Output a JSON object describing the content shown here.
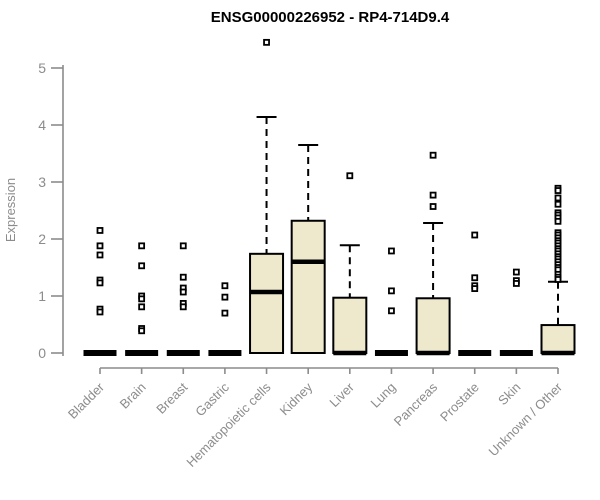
{
  "colors": {
    "background": "#ffffff",
    "box_fill": "#eee8cd",
    "box_border": "#000000",
    "median": "#000000",
    "whisker": "#000000",
    "outlier": "#000000",
    "axis": "#8c8c8c",
    "tick_label": "#8c8c8c",
    "title": "#000000"
  },
  "chart_data": {
    "type": "boxplot",
    "title": "ENSG00000226952 - RP4-714D9.4",
    "xlabel": "",
    "ylabel": "Expression",
    "ylim": [
      0,
      5.5
    ],
    "yticks": [
      0,
      1,
      2,
      3,
      4,
      5
    ],
    "grid": false,
    "legend": "none",
    "categories": [
      "Bladder",
      "Brain",
      "Breast",
      "Gastric",
      "Hematopoietic cells",
      "Kidney",
      "Liver",
      "Lung",
      "Pancreas",
      "Prostate",
      "Skin",
      "Unknown / Other"
    ],
    "series": [
      {
        "name": "Bladder",
        "whisker_low": 0,
        "q1": 0,
        "median": 0,
        "q3": 0,
        "whisker_high": 0,
        "outliers": [
          2.15,
          1.88,
          1.72,
          1.28,
          1.23,
          0.77,
          0.72
        ]
      },
      {
        "name": "Brain",
        "whisker_low": 0,
        "q1": 0,
        "median": 0,
        "q3": 0,
        "whisker_high": 0,
        "outliers": [
          1.88,
          1.53,
          1.0,
          0.95,
          0.81,
          0.43,
          0.39
        ]
      },
      {
        "name": "Breast",
        "whisker_low": 0,
        "q1": 0,
        "median": 0,
        "q3": 0,
        "whisker_high": 0,
        "outliers": [
          1.88,
          1.33,
          1.14,
          1.07,
          0.87,
          0.81
        ]
      },
      {
        "name": "Gastric",
        "whisker_low": 0,
        "q1": 0,
        "median": 0,
        "q3": 0,
        "whisker_high": 0,
        "outliers": [
          1.18,
          0.98,
          0.7
        ]
      },
      {
        "name": "Hematopoietic cells",
        "whisker_low": 0,
        "q1": 0,
        "median": 1.07,
        "q3": 1.74,
        "whisker_high": 4.14,
        "outliers": [
          5.45
        ]
      },
      {
        "name": "Kidney",
        "whisker_low": 0,
        "q1": 0,
        "median": 1.6,
        "q3": 2.32,
        "whisker_high": 3.65,
        "outliers": []
      },
      {
        "name": "Liver",
        "whisker_low": 0,
        "q1": 0,
        "median": 0,
        "q3": 0.97,
        "whisker_high": 1.89,
        "outliers": [
          3.11
        ]
      },
      {
        "name": "Lung",
        "whisker_low": 0,
        "q1": 0,
        "median": 0,
        "q3": 0,
        "whisker_high": 0,
        "outliers": [
          1.79,
          1.09,
          0.74
        ]
      },
      {
        "name": "Pancreas",
        "whisker_low": 0,
        "q1": 0,
        "median": 0,
        "q3": 0.96,
        "whisker_high": 2.28,
        "outliers": [
          3.47,
          2.77,
          2.57
        ]
      },
      {
        "name": "Prostate",
        "whisker_low": 0,
        "q1": 0,
        "median": 0,
        "q3": 0,
        "whisker_high": 0,
        "outliers": [
          2.07,
          1.32,
          1.18,
          1.13
        ]
      },
      {
        "name": "Skin",
        "whisker_low": 0,
        "q1": 0,
        "median": 0,
        "q3": 0,
        "whisker_high": 0,
        "outliers": [
          1.42,
          1.27,
          1.22
        ]
      },
      {
        "name": "Unknown / Other",
        "whisker_low": 0,
        "q1": 0,
        "median": 0,
        "q3": 0.49,
        "whisker_high": 1.25,
        "outliers": [
          2.89,
          2.85,
          2.72,
          2.61,
          2.46,
          2.42,
          2.37,
          2.31,
          2.11,
          2.07,
          2.02,
          1.97,
          1.93,
          1.88,
          1.83,
          1.79,
          1.74,
          1.69,
          1.65,
          1.6,
          1.55,
          1.5,
          1.46,
          1.38,
          1.33,
          1.29
        ]
      }
    ]
  }
}
